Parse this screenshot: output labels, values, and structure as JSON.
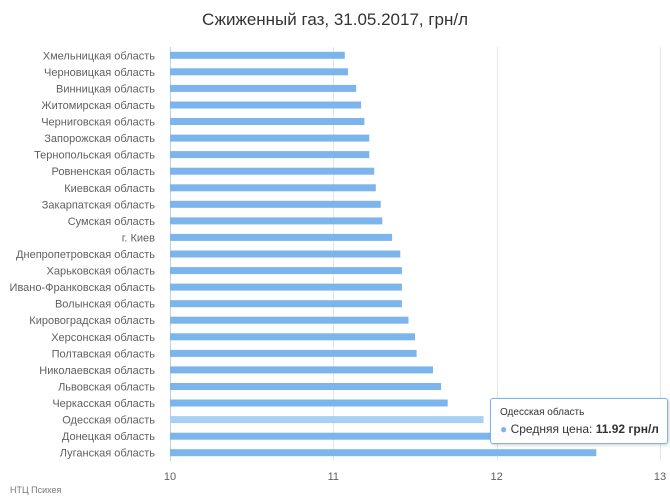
{
  "chart_data": {
    "type": "bar",
    "orientation": "horizontal",
    "title": "Сжиженный газ, 31.05.2017, грн/л",
    "xlim": [
      10,
      13
    ],
    "xticks": [
      10,
      11,
      12,
      13
    ],
    "grid": true,
    "bar_color": "#7cb5ec",
    "highlight_color": "#a8d0f5",
    "categories": [
      "Хмельницкая область",
      "Черновицкая область",
      "Винницкая область",
      "Житомирская область",
      "Черниговская область",
      "Запорожская область",
      "Тернопольская область",
      "Ровненская область",
      "Киевская область",
      "Закарпатская область",
      "Сумская область",
      "г. Киев",
      "Днепропетровская область",
      "Харьковская область",
      "Ивано-Франковская область",
      "Волынская область",
      "Кировоградская область",
      "Херсонская область",
      "Полтавская область",
      "Николаевская область",
      "Львовская область",
      "Черкасская область",
      "Одесская область",
      "Донецкая область",
      "Луганская область"
    ],
    "series": [
      {
        "name": "Средняя цена",
        "values": [
          11.07,
          11.09,
          11.14,
          11.17,
          11.19,
          11.22,
          11.22,
          11.25,
          11.26,
          11.29,
          11.3,
          11.36,
          11.41,
          11.42,
          11.42,
          11.42,
          11.46,
          11.5,
          11.51,
          11.61,
          11.66,
          11.7,
          11.92,
          12.14,
          12.61
        ]
      }
    ],
    "highlight_index": 22
  },
  "tooltip": {
    "title": "Одесская область",
    "series_label": "Средняя цена: ",
    "value": "11.92 грн/л"
  },
  "credits": "НТЦ Психея"
}
